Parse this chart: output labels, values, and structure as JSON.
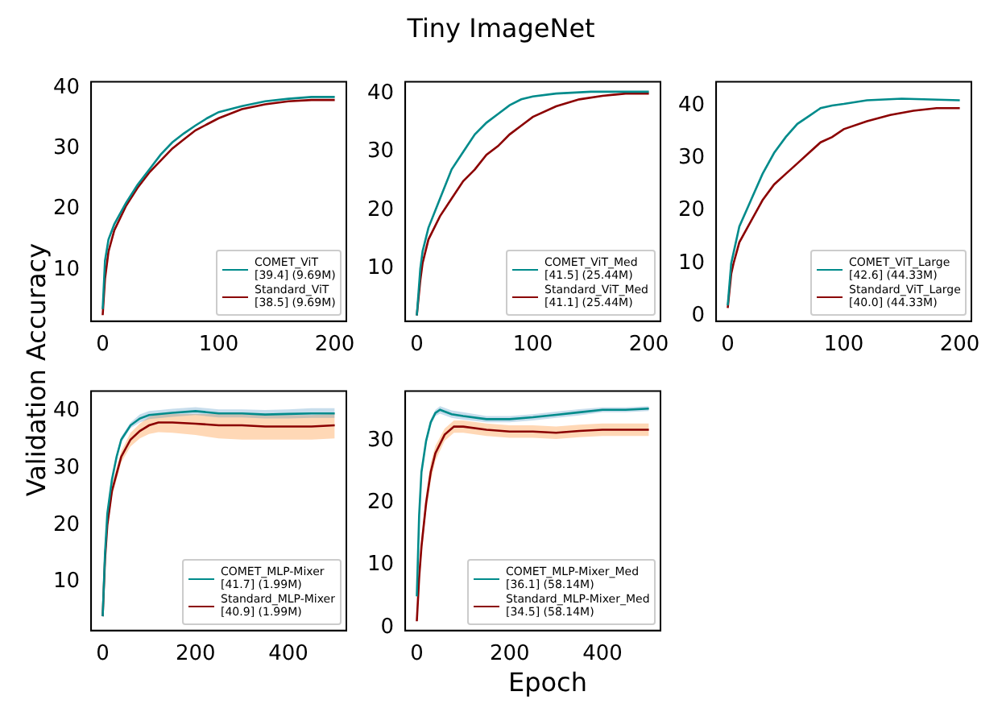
{
  "chart_data": [
    {
      "type": "line",
      "ylabel": "Validation Accuracy",
      "legend": "bottom right",
      "xlim": [
        -10,
        210
      ],
      "ylim": [
        1.5,
        41
      ],
      "xticks": [
        0,
        100,
        200
      ],
      "yticks": [
        10,
        20,
        30,
        40
      ],
      "series": [
        {
          "name": "COMET_ViT\n[39.4] (9.69M)",
          "color": "#008b8b",
          "x": [
            0,
            2,
            5,
            10,
            20,
            30,
            40,
            50,
            60,
            70,
            80,
            90,
            100,
            120,
            140,
            160,
            180,
            200
          ],
          "values": [
            3.5,
            11.5,
            15,
            17.5,
            21,
            24,
            26.5,
            29,
            31,
            32.5,
            33.8,
            35,
            36,
            37,
            37.8,
            38.2,
            38.5,
            38.5
          ]
        },
        {
          "name": "Standard_ViT\n[38.5] (9.69M)",
          "color": "#8b0000",
          "x": [
            0,
            2,
            5,
            10,
            20,
            30,
            40,
            50,
            60,
            70,
            80,
            90,
            100,
            120,
            140,
            160,
            180,
            200
          ],
          "values": [
            2.5,
            8.5,
            13,
            16.5,
            20.5,
            23.5,
            26,
            28,
            30,
            31.5,
            33,
            34,
            35,
            36.5,
            37.3,
            37.8,
            38,
            38
          ]
        }
      ]
    },
    {
      "type": "line",
      "title": "Tiny ImageNet",
      "legend": "bottom right",
      "xlim": [
        -10,
        210
      ],
      "ylim": [
        1,
        42
      ],
      "xticks": [
        0,
        100,
        200
      ],
      "yticks": [
        10,
        20,
        30,
        40
      ],
      "series": [
        {
          "name": "COMET_ViT_Med\n[41.5] (25.44M)",
          "color": "#008b8b",
          "x": [
            0,
            3,
            5,
            10,
            20,
            30,
            40,
            50,
            60,
            70,
            80,
            90,
            100,
            120,
            150,
            200
          ],
          "values": [
            2,
            10,
            13,
            17,
            22,
            27,
            30,
            33,
            35,
            36.5,
            38,
            39,
            39.5,
            40,
            40.3,
            40.3
          ]
        },
        {
          "name": "Standard_ViT_Med\n[41.1] (25.44M)",
          "color": "#8b0000",
          "x": [
            0,
            3,
            5,
            10,
            20,
            30,
            40,
            50,
            60,
            70,
            80,
            90,
            100,
            120,
            140,
            160,
            180,
            200
          ],
          "values": [
            2,
            8,
            11,
            15,
            19,
            22,
            25,
            27,
            29.5,
            31,
            33,
            34.5,
            36,
            37.8,
            39,
            39.6,
            40,
            40
          ]
        }
      ]
    },
    {
      "type": "line",
      "legend": "bottom right",
      "xlim": [
        -10,
        210
      ],
      "ylim": [
        -1,
        44.5
      ],
      "xticks": [
        0,
        100,
        200
      ],
      "yticks": [
        0,
        10,
        20,
        30,
        40
      ],
      "series": [
        {
          "name": "COMET_ViT_Large\n[42.6] (44.33M)",
          "color": "#008b8b",
          "x": [
            0,
            3,
            5,
            10,
            20,
            30,
            40,
            50,
            60,
            70,
            80,
            90,
            100,
            120,
            150,
            200
          ],
          "values": [
            2,
            10,
            12,
            17,
            22,
            27,
            31,
            34,
            36.5,
            38,
            39.5,
            40,
            40.3,
            41,
            41.3,
            41
          ]
        },
        {
          "name": "Standard_ViT_Large\n[40.0] (44.33M)",
          "color": "#8b0000",
          "x": [
            0,
            3,
            5,
            10,
            20,
            30,
            40,
            50,
            60,
            70,
            80,
            90,
            100,
            120,
            140,
            160,
            180,
            200
          ],
          "values": [
            1.5,
            8,
            10,
            14,
            18,
            22,
            25,
            27,
            29,
            31,
            33,
            34,
            35.5,
            37,
            38.2,
            39,
            39.5,
            39.5
          ]
        }
      ]
    },
    {
      "type": "line",
      "legend": "bottom right",
      "xlim": [
        -25,
        525
      ],
      "ylim": [
        1.5,
        43.5
      ],
      "xticks": [
        0,
        200,
        400
      ],
      "yticks": [
        10,
        20,
        30,
        40
      ],
      "series": [
        {
          "name": "COMET_MLP-Mixer\n[41.7] (1.99M)",
          "color": "#008b8b",
          "x": [
            0,
            5,
            10,
            20,
            30,
            40,
            60,
            80,
            100,
            150,
            200,
            250,
            300,
            350,
            400,
            450,
            500
          ],
          "values": [
            4,
            15,
            22,
            28,
            32,
            35,
            37.5,
            38.7,
            39.3,
            39.7,
            40,
            39.6,
            39.6,
            39.4,
            39.5,
            39.6,
            39.6
          ],
          "lower": [
            4,
            14.5,
            21.5,
            27.5,
            31.5,
            34.5,
            37,
            38,
            38.6,
            39,
            39.3,
            38.9,
            38.9,
            38.7,
            38.7,
            38.8,
            38.8
          ],
          "upper": [
            4,
            15.5,
            22.5,
            28.5,
            32.5,
            35.5,
            38,
            39.4,
            40,
            40.4,
            40.7,
            40.3,
            40.3,
            40.2,
            40.3,
            40.5,
            40.5
          ]
        },
        {
          "name": "Standard_MLP-Mixer\n[40.9] (1.99M)",
          "color": "#8b0000",
          "x": [
            0,
            5,
            10,
            20,
            30,
            40,
            60,
            80,
            100,
            120,
            150,
            200,
            250,
            300,
            350,
            400,
            450,
            500
          ],
          "values": [
            4,
            14,
            20,
            26,
            29,
            32,
            35,
            36.5,
            37.5,
            38,
            38,
            37.8,
            37.5,
            37.5,
            37.3,
            37.3,
            37.3,
            37.5
          ],
          "lower": [
            4,
            13.5,
            19.3,
            25,
            28,
            31,
            33.8,
            35.2,
            36,
            36.3,
            36.2,
            35.8,
            35.2,
            35,
            35,
            35,
            35,
            35.2
          ],
          "upper": [
            4,
            14.5,
            20.7,
            27,
            30,
            33,
            36.2,
            37.8,
            39,
            39.5,
            39.5,
            39.5,
            39.5,
            39.5,
            39.3,
            39.3,
            39.3,
            39.5
          ]
        }
      ]
    },
    {
      "type": "line",
      "xlabel": "Epoch",
      "legend": "bottom right",
      "xlim": [
        -25,
        525
      ],
      "ylim": [
        -0.5,
        38
      ],
      "xticks": [
        0,
        200,
        400
      ],
      "yticks": [
        0,
        10,
        20,
        30
      ],
      "series": [
        {
          "name": "COMET_MLP-Mixer_Med\n[36.1] (58.14M)",
          "color": "#008b8b",
          "x": [
            0,
            5,
            10,
            20,
            30,
            40,
            50,
            75,
            100,
            150,
            200,
            250,
            300,
            350,
            400,
            450,
            500
          ],
          "values": [
            5,
            18,
            25,
            30,
            33,
            34.5,
            35,
            34.3,
            34,
            33.5,
            33.5,
            33.8,
            34.2,
            34.6,
            35,
            35,
            35.2
          ],
          "lower": [
            5,
            17.5,
            24.5,
            29.5,
            32.5,
            34,
            34.4,
            33.7,
            33.4,
            33,
            33,
            33.3,
            33.7,
            34.1,
            34.6,
            34.6,
            34.8
          ],
          "upper": [
            5,
            18.5,
            25.5,
            30.5,
            33.5,
            35,
            35.6,
            34.9,
            34.6,
            34,
            34,
            34.3,
            34.7,
            35.1,
            35.4,
            35.4,
            35.6
          ]
        },
        {
          "name": "Standard_MLP-Mixer_Med\n[34.5] (58.14M)",
          "color": "#8b0000",
          "x": [
            0,
            5,
            10,
            20,
            30,
            40,
            60,
            80,
            100,
            150,
            200,
            250,
            300,
            350,
            400,
            450,
            500
          ],
          "values": [
            1,
            8,
            13,
            20,
            25,
            28,
            31,
            32.3,
            32.3,
            31.8,
            31.5,
            31.5,
            31.3,
            31.6,
            31.8,
            31.8,
            31.8
          ],
          "lower": [
            1,
            6.5,
            11.5,
            18.5,
            23.5,
            26.8,
            30,
            31.3,
            31.3,
            30.8,
            30.5,
            30.5,
            30.3,
            30.6,
            30.8,
            30.8,
            30.8
          ],
          "upper": [
            1,
            9.5,
            14.5,
            21.5,
            26.5,
            29.2,
            32,
            33.3,
            33.3,
            32.8,
            32.5,
            32.5,
            32.3,
            32.6,
            32.8,
            32.8,
            32.8
          ]
        }
      ]
    }
  ]
}
